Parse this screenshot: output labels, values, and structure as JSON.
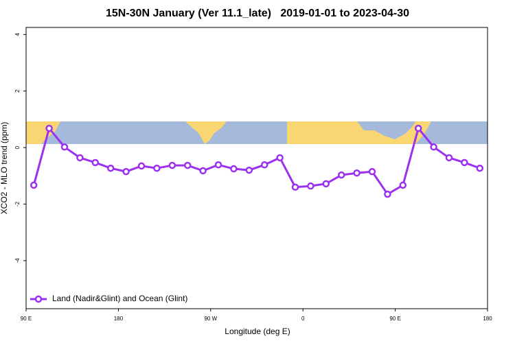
{
  "chart_data": {
    "type": "line",
    "title": "15N-30N January (Ver 11.1_late)   2019-01-01 to 2023-04-30",
    "x_label": "Longitude (deg E)",
    "y_label": "XCO2 - MLO trend (ppm)",
    "xlim": [
      90,
      540
    ],
    "ylim": [
      -5.7,
      4.25
    ],
    "xticks": [
      {
        "value": 90,
        "label": "90 E"
      },
      180,
      {
        "value": 270,
        "label": "90 W"
      },
      {
        "value": 360,
        "label": "0"
      },
      {
        "value": 450,
        "label": "90 E"
      },
      {
        "value": 540,
        "label": "180"
      }
    ],
    "yticks": [
      4,
      2,
      0,
      -2,
      -4
    ],
    "grid": false,
    "legend": "bottom-left",
    "series": [
      {
        "name": "Land (Nadir&Glint) and Ocean (Glint)",
        "color": "#9b30f0",
        "x": [
          97.5,
          112.5,
          127.5,
          142.5,
          157.5,
          172.5,
          187.5,
          202.5,
          217.5,
          232.5,
          247.5,
          262.5,
          277.5,
          292.5,
          307.5,
          322.5,
          337.5,
          352.5,
          367.5,
          382.5,
          397.5,
          412.5,
          427.5,
          442.5,
          457.5,
          472.5,
          487.5,
          502.5,
          517.5,
          532.5
        ],
        "values": [
          -1.33,
          0.68,
          0.02,
          -0.36,
          -0.53,
          -0.73,
          -0.85,
          -0.65,
          -0.73,
          -0.63,
          -0.63,
          -0.82,
          -0.61,
          -0.75,
          -0.8,
          -0.61,
          -0.36,
          -1.4,
          -1.36,
          -1.28,
          -0.97,
          -0.9,
          -0.85,
          -1.65,
          -1.33,
          0.68,
          0.02,
          -0.36,
          -0.53,
          -0.73
        ]
      }
    ]
  }
}
